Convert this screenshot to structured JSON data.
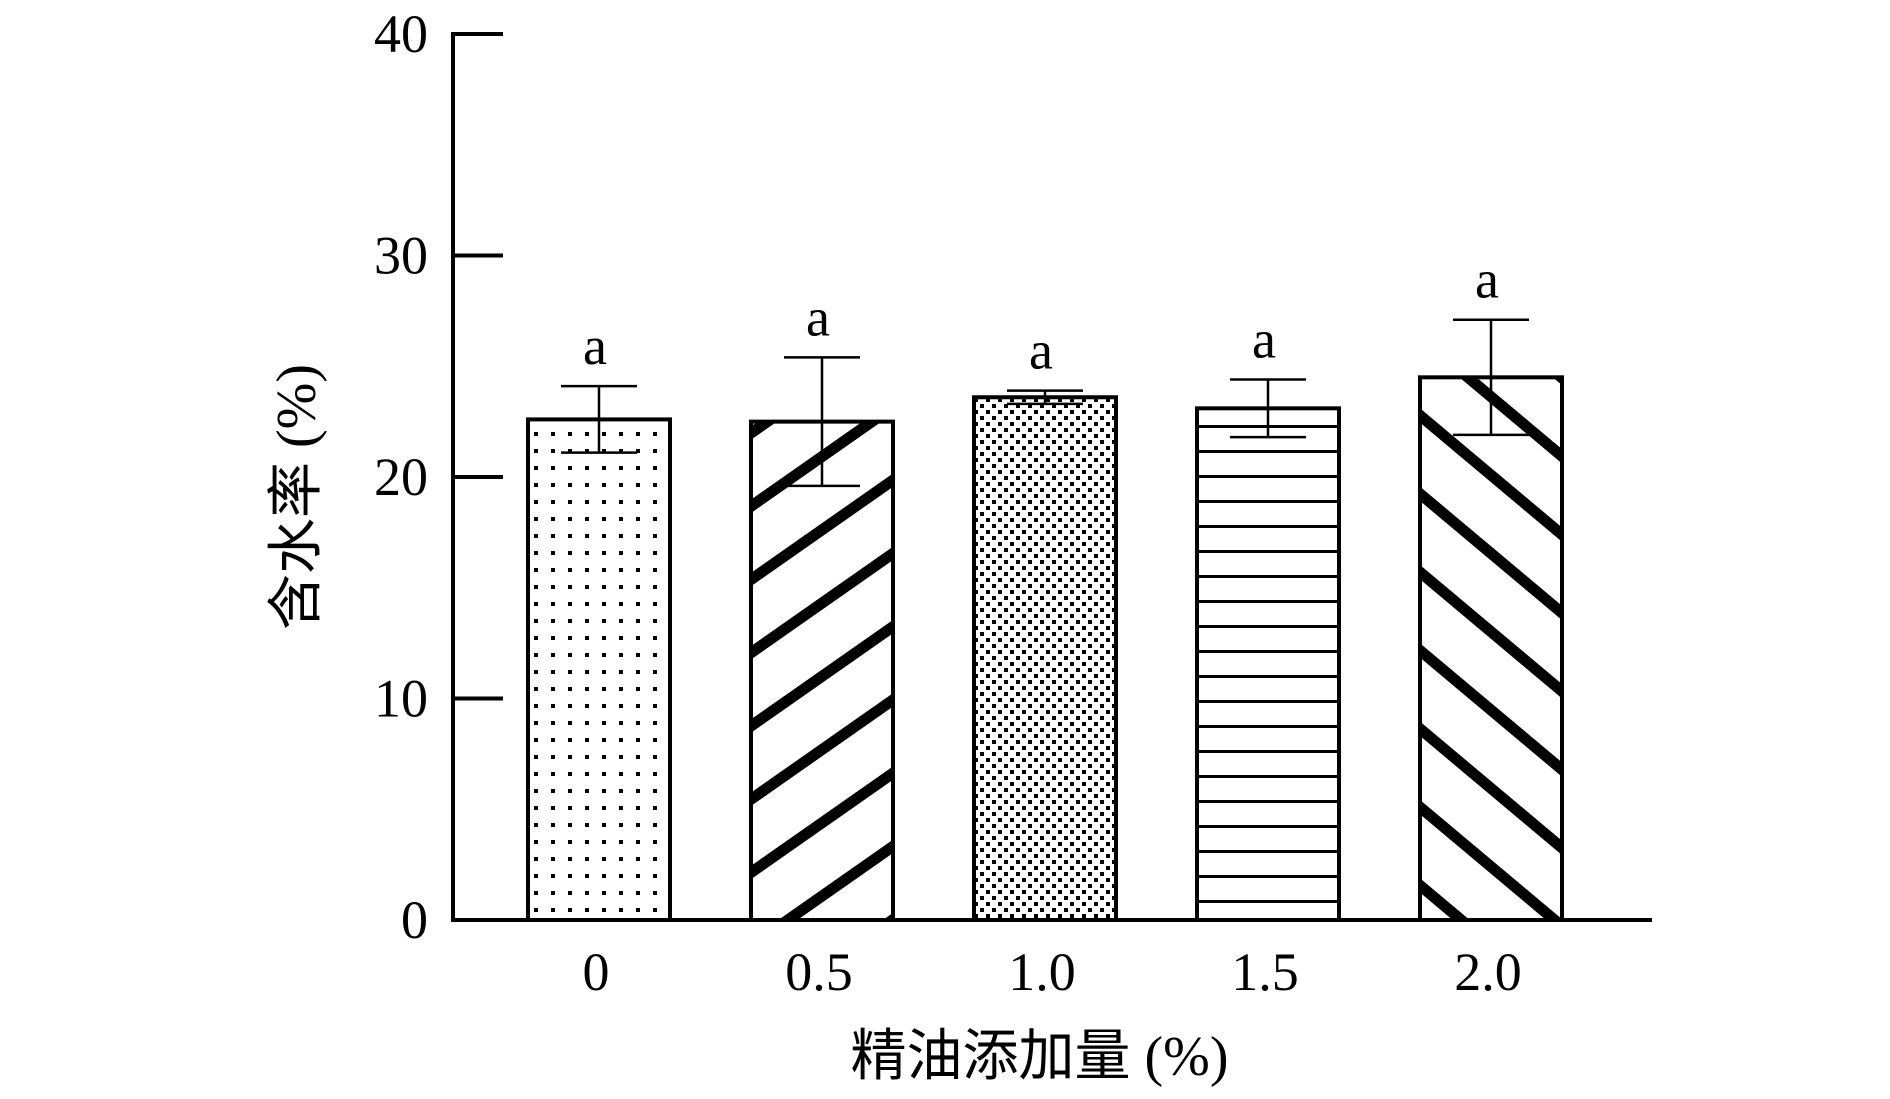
{
  "chart_data": {
    "type": "bar",
    "title": "",
    "xlabel": "精油添加量 (%)",
    "ylabel": "含水率 (%)",
    "categories": [
      "0",
      "0.5",
      "1.0",
      "1.5",
      "2.0"
    ],
    "values": [
      22.6,
      22.5,
      23.6,
      23.1,
      24.5
    ],
    "error": [
      1.5,
      2.9,
      0.3,
      1.3,
      2.6
    ],
    "significance": [
      "a",
      "a",
      "a",
      "a",
      "a"
    ],
    "patterns": [
      "sparse-dots",
      "diagonal-up",
      "dense-dots",
      "horizontal-lines",
      "diagonal-down"
    ],
    "ylim": [
      0,
      40
    ],
    "yticks": [
      "0",
      "10",
      "20",
      "30",
      "40"
    ],
    "grid": false,
    "legend": "none"
  }
}
